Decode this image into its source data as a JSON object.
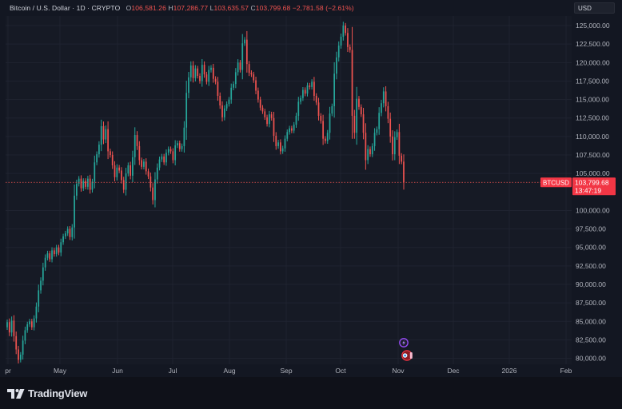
{
  "header": {
    "symbol": "Bitcoin / U.S. Dollar · 1D · CRYPTO",
    "open_key": "O",
    "open": "106,581.26",
    "high_key": "H",
    "high": "107,286.77",
    "low_key": "L",
    "low": "103,635.57",
    "close_key": "C",
    "close": "103,799.68",
    "change": "−2,781.58 (−2.61%)"
  },
  "currency_button": "USD",
  "price_tag": {
    "ticker": "BTCUSD",
    "price": "103,799.68",
    "countdown": "13:47:19"
  },
  "brand": {
    "name": "TradingView"
  },
  "colors": {
    "up": "#26a69a",
    "down": "#ef5350",
    "background": "#131722",
    "grid": "#1f2330",
    "axis_text": "#b2b5be",
    "price_line": "#ef5350",
    "tag_bg": "#f23645"
  },
  "icons": [
    "lightning-event-icon",
    "earnings-event-icon",
    "tradingview-logo-icon"
  ],
  "chart_data": {
    "type": "candlestick",
    "y_axis_labels": [
      "125,000.00",
      "122,500.00",
      "120,000.00",
      "117,500.00",
      "115,000.00",
      "112,500.00",
      "110,000.00",
      "107,500.00",
      "105,000.00",
      "100,000.00",
      "97,500.00",
      "95,000.00",
      "92,500.00",
      "90,000.00",
      "87,500.00",
      "85,000.00",
      "82,500.00",
      "80,000.00"
    ],
    "x_axis_labels": [
      "pr",
      "May",
      "Jun",
      "Jul",
      "Aug",
      "Sep",
      "Oct",
      "Nov",
      "Dec",
      "2026",
      "Feb"
    ],
    "ylim": [
      79200,
      126300
    ],
    "grid": true,
    "last_price": 103799.68,
    "series": [
      {
        "values": [
          [
            84200,
            84900
          ],
          [
            84900,
            83500
          ],
          [
            83500,
            85100
          ],
          [
            85100,
            83000
          ],
          [
            83000,
            81200
          ],
          [
            81200,
            79800
          ],
          [
            79800,
            80500
          ],
          [
            80500,
            82400
          ],
          [
            82400,
            83800
          ],
          [
            83800,
            84600
          ],
          [
            84600,
            85000
          ],
          [
            85000,
            84200
          ],
          [
            84200,
            85400
          ],
          [
            85400,
            87000
          ],
          [
            87000,
            89200
          ],
          [
            89200,
            90500
          ],
          [
            90500,
            92300
          ],
          [
            92300,
            93600
          ],
          [
            93600,
            94200
          ],
          [
            94200,
            93400
          ],
          [
            93400,
            94600
          ],
          [
            94600,
            94100
          ],
          [
            94100,
            95000
          ],
          [
            95000,
            94300
          ],
          [
            94300,
            95700
          ],
          [
            95700,
            96500
          ],
          [
            96500,
            96900
          ],
          [
            96900,
            97500
          ],
          [
            97500,
            96400
          ],
          [
            96400,
            97700
          ],
          [
            97700,
            102000
          ],
          [
            102000,
            103600
          ],
          [
            103600,
            104300
          ],
          [
            104300,
            103000
          ],
          [
            103000,
            104000
          ],
          [
            104000,
            103200
          ],
          [
            103200,
            104300
          ],
          [
            104300,
            102800
          ],
          [
            102800,
            103900
          ],
          [
            103900,
            106500
          ],
          [
            106500,
            107600
          ],
          [
            107600,
            108900
          ],
          [
            108900,
            111400
          ],
          [
            111400,
            109600
          ],
          [
            109600,
            111000
          ],
          [
            111000,
            108000
          ],
          [
            108000,
            107500
          ],
          [
            107500,
            106100
          ],
          [
            106100,
            104500
          ],
          [
            104500,
            105800
          ],
          [
            105800,
            105400
          ],
          [
            105400,
            104100
          ],
          [
            104100,
            102800
          ],
          [
            102800,
            105000
          ],
          [
            105000,
            106100
          ],
          [
            106100,
            104700
          ],
          [
            104700,
            107200
          ],
          [
            107200,
            110200
          ],
          [
            110200,
            108700
          ],
          [
            108700,
            106800
          ],
          [
            106800,
            105900
          ],
          [
            105900,
            106600
          ],
          [
            106600,
            105300
          ],
          [
            105300,
            104600
          ],
          [
            104600,
            103100
          ],
          [
            103100,
            101400
          ],
          [
            101400,
            104200
          ],
          [
            104200,
            105800
          ],
          [
            105800,
            106900
          ],
          [
            106900,
            107300
          ],
          [
            107300,
            106500
          ],
          [
            106500,
            107800
          ],
          [
            107800,
            108300
          ],
          [
            108300,
            108000
          ],
          [
            108000,
            106800
          ],
          [
            106800,
            108800
          ],
          [
            108800,
            109100
          ],
          [
            109100,
            108300
          ],
          [
            108300,
            108700
          ],
          [
            108700,
            111200
          ],
          [
            111200,
            115900
          ],
          [
            115900,
            118000
          ],
          [
            118000,
            119600
          ],
          [
            119600,
            117900
          ],
          [
            117900,
            119200
          ],
          [
            119200,
            118200
          ],
          [
            118200,
            117500
          ],
          [
            117500,
            119700
          ],
          [
            119700,
            118400
          ],
          [
            118400,
            117400
          ],
          [
            117400,
            119000
          ],
          [
            119000,
            119300
          ],
          [
            119300,
            117800
          ],
          [
            117800,
            117400
          ],
          [
            117400,
            115500
          ],
          [
            115500,
            114200
          ],
          [
            114200,
            112600
          ],
          [
            112600,
            113800
          ],
          [
            113800,
            114400
          ],
          [
            114400,
            115000
          ],
          [
            115000,
            116600
          ],
          [
            116600,
            117100
          ],
          [
            117100,
            118700
          ],
          [
            118700,
            120000
          ],
          [
            120000,
            119000
          ],
          [
            119000,
            122600
          ],
          [
            122600,
            123100
          ],
          [
            123100,
            119800
          ],
          [
            119800,
            118600
          ],
          [
            118600,
            118400
          ],
          [
            118400,
            117600
          ],
          [
            117600,
            116200
          ],
          [
            116200,
            115000
          ],
          [
            115000,
            113900
          ],
          [
            113900,
            113400
          ],
          [
            113400,
            112600
          ],
          [
            112600,
            111700
          ],
          [
            111700,
            113000
          ],
          [
            113000,
            112500
          ],
          [
            112500,
            110100
          ],
          [
            110100,
            108700
          ],
          [
            108700,
            109200
          ],
          [
            109200,
            108000
          ],
          [
            108000,
            108400
          ],
          [
            108400,
            109700
          ],
          [
            109700,
            110600
          ],
          [
            110600,
            111100
          ],
          [
            111100,
            110800
          ],
          [
            110800,
            111600
          ],
          [
            111600,
            112800
          ],
          [
            112800,
            114700
          ],
          [
            114700,
            115200
          ],
          [
            115200,
            116300
          ],
          [
            116300,
            115800
          ],
          [
            115800,
            116900
          ],
          [
            116900,
            116700
          ],
          [
            116700,
            117400
          ],
          [
            117400,
            115500
          ],
          [
            115500,
            114600
          ],
          [
            114600,
            112800
          ],
          [
            112800,
            112100
          ],
          [
            112100,
            109700
          ],
          [
            109700,
            109400
          ],
          [
            109400,
            110500
          ],
          [
            110500,
            113100
          ],
          [
            113100,
            114100
          ],
          [
            114100,
            118500
          ],
          [
            118500,
            120700
          ],
          [
            120700,
            122300
          ],
          [
            122300,
            123500
          ],
          [
            123500,
            125000
          ],
          [
            125000,
            124000
          ],
          [
            124000,
            122100
          ],
          [
            122100,
            121700
          ],
          [
            121700,
            112800
          ],
          [
            112800,
            110500
          ],
          [
            110500,
            115100
          ],
          [
            115100,
            114000
          ],
          [
            114000,
            113000
          ],
          [
            113000,
            110500
          ],
          [
            110500,
            106800
          ],
          [
            106800,
            108300
          ],
          [
            108300,
            107600
          ],
          [
            107600,
            108700
          ],
          [
            108700,
            110500
          ],
          [
            110500,
            111000
          ],
          [
            111000,
            113200
          ],
          [
            113200,
            114500
          ],
          [
            114500,
            116100
          ],
          [
            116100,
            114100
          ],
          [
            114100,
            112400
          ],
          [
            112400,
            110000
          ],
          [
            110000,
            107600
          ],
          [
            107600,
            109900
          ],
          [
            109900,
            110600
          ],
          [
            110600,
            107400
          ],
          [
            107400,
            106600
          ],
          [
            106600,
            103800
          ]
        ]
      }
    ]
  }
}
